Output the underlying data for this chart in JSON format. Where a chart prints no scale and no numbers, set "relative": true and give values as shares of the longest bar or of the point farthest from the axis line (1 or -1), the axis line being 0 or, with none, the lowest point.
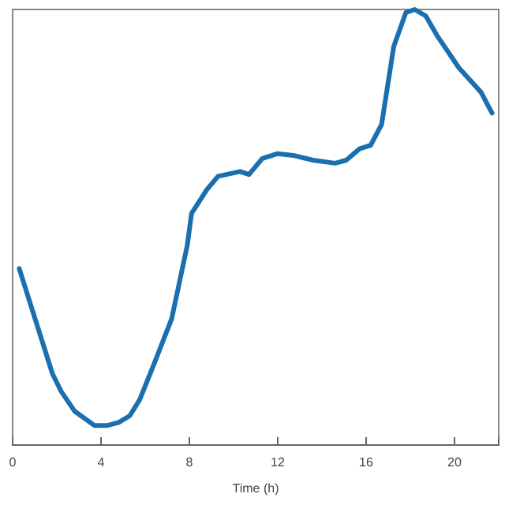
{
  "chart_data": {
    "type": "line",
    "xlabel": "Time (h)",
    "relative": true,
    "xlim": [
      0,
      22
    ],
    "xticks": [
      0,
      4,
      8,
      12,
      16,
      20
    ],
    "series": [
      {
        "color": "#1a6faf",
        "x": [
          0.3,
          1.8,
          2.2,
          2.8,
          3.7,
          4.3,
          4.8,
          5.3,
          5.75,
          6.4,
          7.2,
          7.9,
          8.1,
          8.8,
          9.3,
          10.3,
          10.7,
          11.3,
          12.0,
          12.7,
          13.6,
          14.6,
          15.1,
          15.7,
          16.2,
          16.7,
          17.25,
          17.8,
          18.2,
          18.7,
          19.2,
          20.2,
          21.2,
          21.7
        ],
        "values": [
          0.405,
          0.164,
          0.123,
          0.078,
          0.045,
          0.045,
          0.052,
          0.067,
          0.104,
          0.186,
          0.29,
          0.457,
          0.532,
          0.587,
          0.617,
          0.628,
          0.621,
          0.658,
          0.669,
          0.665,
          0.654,
          0.647,
          0.654,
          0.68,
          0.688,
          0.736,
          0.915,
          0.993,
          1.0,
          0.985,
          0.941,
          0.866,
          0.81,
          0.762
        ]
      }
    ]
  }
}
